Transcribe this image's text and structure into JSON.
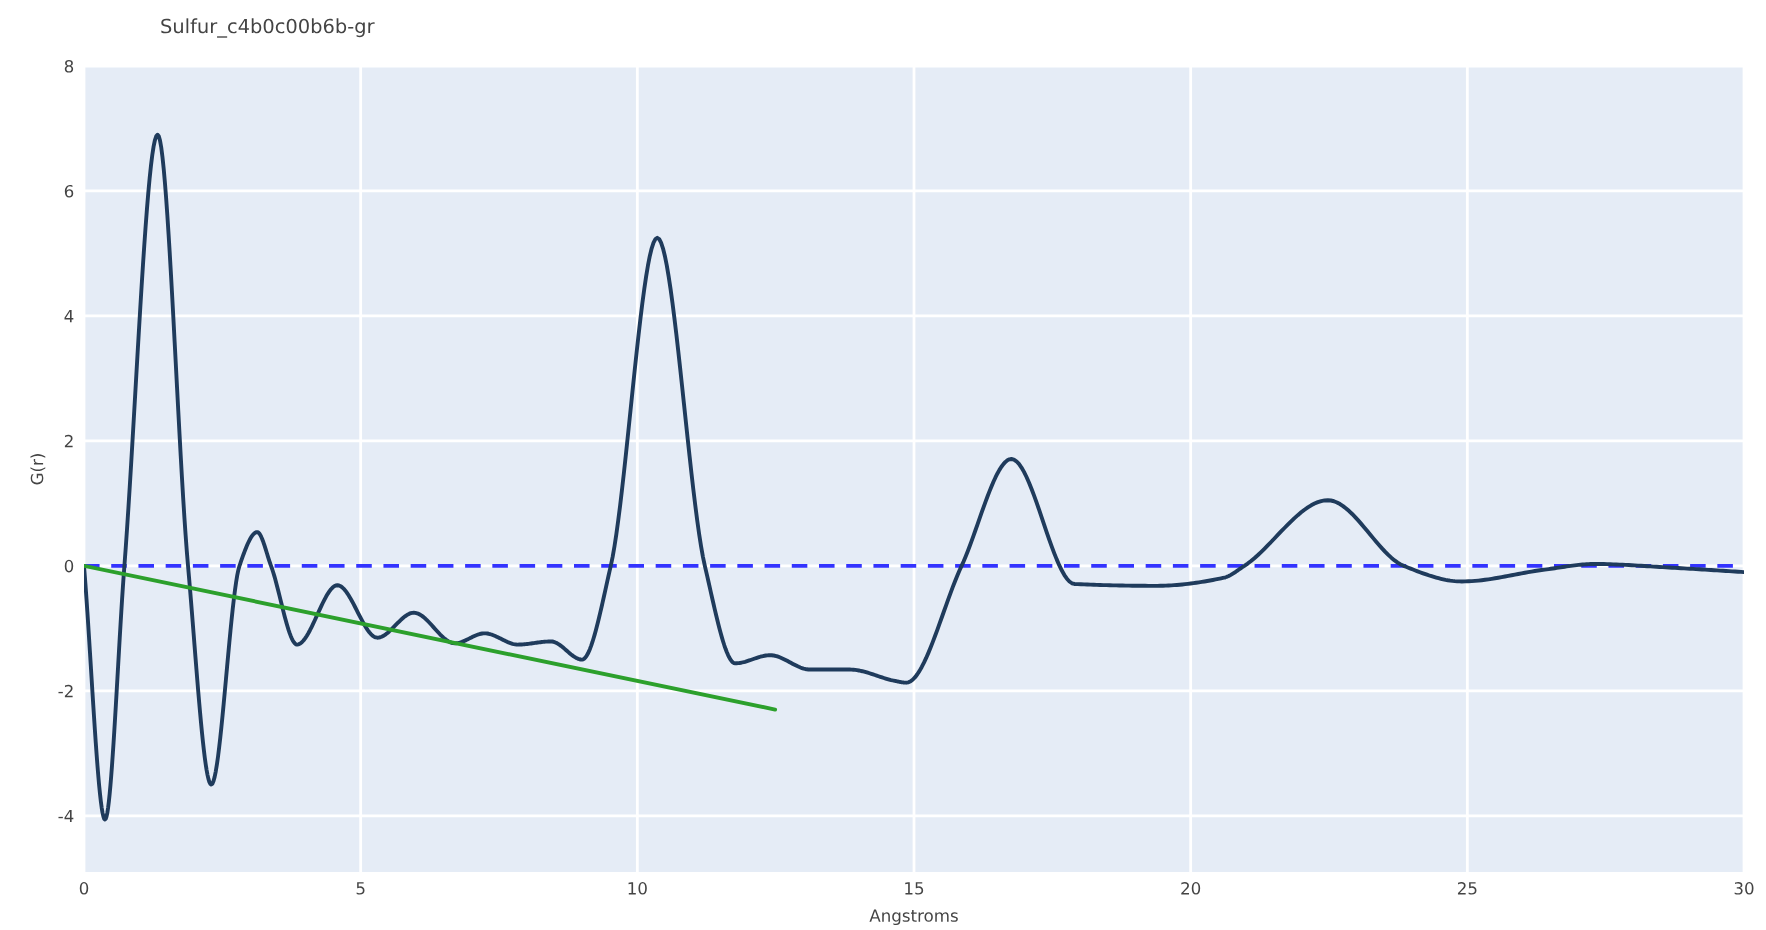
{
  "chart_data": {
    "type": "line",
    "title": "Sulfur_c4b0c00b6b-gr",
    "xlabel": "Angstroms",
    "ylabel": "G(r)",
    "xlim": [
      0,
      30
    ],
    "ylim": [
      -4.9,
      8
    ],
    "xticks": [
      0,
      5,
      10,
      15,
      20,
      25,
      30
    ],
    "yticks": [
      -4,
      -2,
      0,
      2,
      4,
      6,
      8
    ],
    "grid": true,
    "legend": false,
    "series": [
      {
        "color": "#1f3b5c",
        "x": [
          0,
          0.38,
          0.73,
          1.33,
          1.88,
          2.3,
          2.81,
          3.13,
          3.38,
          3.85,
          4.58,
          5.3,
          5.96,
          6.7,
          7.24,
          7.84,
          8.44,
          9.0,
          9.52,
          10.36,
          11.22,
          11.77,
          12.4,
          13.12,
          13.84,
          14.65,
          14.86,
          15.86,
          16.76,
          17.9,
          19.35,
          20.6,
          20.97,
          22.48,
          23.85,
          24.9,
          26.4,
          27.3,
          28.7,
          30
        ],
        "values": [
          0,
          -4.06,
          0,
          6.9,
          0,
          -3.5,
          0,
          0.54,
          0,
          -1.26,
          -0.31,
          -1.15,
          -0.75,
          -1.24,
          -1.08,
          -1.26,
          -1.21,
          -1.5,
          0,
          5.25,
          0,
          -1.56,
          -1.43,
          -1.66,
          -1.66,
          -1.84,
          -1.87,
          0,
          1.71,
          -0.29,
          -0.32,
          -0.19,
          0,
          1.05,
          0,
          -0.25,
          -0.06,
          0.03,
          -0.03,
          -0.1
        ]
      },
      {
        "type": "line",
        "color": "#2ca02c",
        "x": [
          0,
          12.49
        ],
        "values": [
          0,
          -2.3
        ]
      }
    ],
    "ref_lines": [
      {
        "axis": "y",
        "value": 0,
        "color": "#3333ff",
        "line_style": "dashed"
      }
    ]
  }
}
